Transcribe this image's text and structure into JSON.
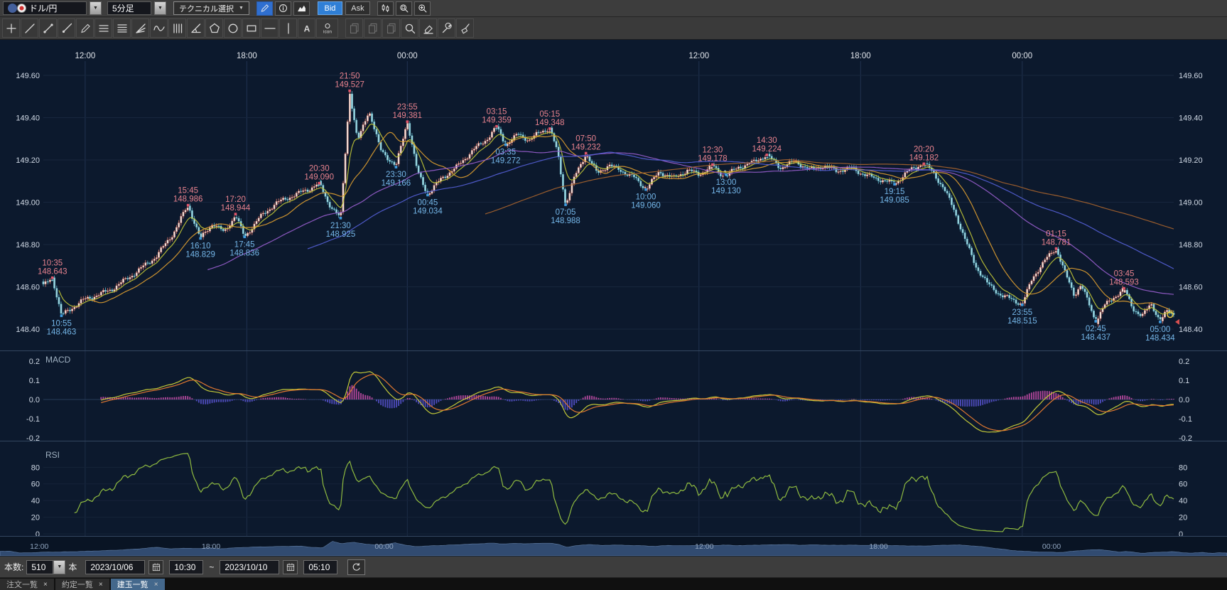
{
  "colors": {
    "bg_chart": "#0c192d",
    "candle_up": "#f0e1da",
    "candle_up_stroke": "#d4766a",
    "candle_down": "#9ed6e0",
    "candle_down_stroke": "#58a8bc",
    "high_label": "#e8828e",
    "low_label": "#74b6e8",
    "macd_pos": "#cf4fae",
    "macd_neg": "#5b55d6",
    "macd_line": "#c2c838",
    "macd_signal": "#e07830",
    "rsi_line": "#8fbb40",
    "grid_h": "#17263d",
    "grid_v": "#203250",
    "axis_text": "#cfd8e4"
  },
  "toolbar": {
    "pair": "ドル/円",
    "timeframe": "5分足",
    "technical_button": "テクニカル選択",
    "bid": "Bid",
    "ask": "Ask",
    "icon_buttons": [
      {
        "name": "draw-mode-button",
        "kind": "pencil",
        "accent": true
      },
      {
        "name": "info-button",
        "kind": "info"
      },
      {
        "name": "chart-style-button",
        "kind": "area"
      }
    ],
    "right_buttons": [
      {
        "name": "candle-type-button",
        "kind": "candles"
      },
      {
        "name": "zoom-area-button",
        "kind": "magrect"
      },
      {
        "name": "zoom-in-button",
        "kind": "magplus"
      }
    ]
  },
  "draw_tools": [
    {
      "name": "crosshair-tool",
      "kind": "plus"
    },
    {
      "name": "trendline-tool",
      "kind": "diag"
    },
    {
      "name": "line-segment-tool",
      "kind": "seg"
    },
    {
      "name": "ray-line-tool",
      "kind": "ray"
    },
    {
      "name": "freehand-pencil-tool",
      "kind": "pencil"
    },
    {
      "name": "fibonacci-retracement-tool",
      "kind": "h3"
    },
    {
      "name": "fibonacci-levels-tool",
      "kind": "h4"
    },
    {
      "name": "gann-fan-tool",
      "kind": "fan"
    },
    {
      "name": "wave-tool",
      "kind": "wave"
    },
    {
      "name": "time-zones-tool",
      "kind": "v4"
    },
    {
      "name": "trend-angle-tool",
      "kind": "angle"
    },
    {
      "name": "pentagon-tool",
      "kind": "pentagon"
    },
    {
      "name": "ellipse-tool",
      "kind": "circle"
    },
    {
      "name": "rectangle-tool",
      "kind": "rect"
    },
    {
      "name": "horizontal-line-tool",
      "kind": "hline"
    },
    {
      "name": "vertical-line-tool",
      "kind": "vline"
    },
    {
      "name": "text-tool",
      "kind": "textA",
      "label": "A"
    },
    {
      "name": "icon-stamp-tool",
      "kind": "iconbtn",
      "label": "icon",
      "wide": true
    },
    {
      "name": "copy-object-tool",
      "kind": "clip",
      "disabled": true,
      "gap": true
    },
    {
      "name": "duplicate-object-tool",
      "kind": "clip",
      "disabled": true
    },
    {
      "name": "paste-object-tool",
      "kind": "clip",
      "disabled": true
    },
    {
      "name": "zoom-select-tool",
      "kind": "mag"
    },
    {
      "name": "eraser-tool",
      "kind": "eraser"
    },
    {
      "name": "object-settings-tool",
      "kind": "wrench"
    },
    {
      "name": "clear-all-tool",
      "kind": "broom"
    }
  ],
  "chart_data": {
    "type": "candlestick+indicators",
    "symbol": "ドル/円",
    "interval": "5分足",
    "bar_count": 510,
    "price_axis": {
      "min": 148.4,
      "max": 149.6,
      "ticks": [
        "149.60",
        "149.40",
        "149.20",
        "149.00",
        "148.80",
        "148.60",
        "148.40"
      ]
    },
    "time_ticks": [
      {
        "label": "12:00",
        "f": 0.037
      },
      {
        "label": "18:00",
        "f": 0.18
      },
      {
        "label": "00:00",
        "f": 0.322
      },
      {
        "label": "12:00",
        "f": 0.58
      },
      {
        "label": "18:00",
        "f": 0.723
      },
      {
        "label": "00:00",
        "f": 0.866
      }
    ],
    "nav_ticks": [
      {
        "label": "12:00",
        "f": 0.032
      },
      {
        "label": "18:00",
        "f": 0.172
      },
      {
        "label": "00:00",
        "f": 0.313
      },
      {
        "label": "12:00",
        "f": 0.574
      },
      {
        "label": "18:00",
        "f": 0.716
      },
      {
        "label": "00:00",
        "f": 0.857
      }
    ],
    "anchors": [
      [
        0.0,
        148.6
      ],
      [
        0.008,
        148.643
      ],
      [
        0.016,
        148.463
      ],
      [
        0.035,
        148.54
      ],
      [
        0.06,
        148.59
      ],
      [
        0.08,
        148.66
      ],
      [
        0.1,
        148.74
      ],
      [
        0.115,
        148.85
      ],
      [
        0.128,
        148.986
      ],
      [
        0.139,
        148.829
      ],
      [
        0.15,
        148.905
      ],
      [
        0.16,
        148.86
      ],
      [
        0.17,
        148.944
      ],
      [
        0.178,
        148.836
      ],
      [
        0.19,
        148.92
      ],
      [
        0.205,
        148.99
      ],
      [
        0.222,
        149.03
      ],
      [
        0.235,
        149.06
      ],
      [
        0.244,
        149.09
      ],
      [
        0.252,
        149.0
      ],
      [
        0.263,
        148.925
      ],
      [
        0.271,
        149.527
      ],
      [
        0.278,
        149.29
      ],
      [
        0.288,
        149.44
      ],
      [
        0.298,
        149.25
      ],
      [
        0.312,
        149.166
      ],
      [
        0.322,
        149.381
      ],
      [
        0.331,
        149.14
      ],
      [
        0.34,
        149.034
      ],
      [
        0.352,
        149.11
      ],
      [
        0.366,
        149.17
      ],
      [
        0.38,
        149.25
      ],
      [
        0.392,
        149.3
      ],
      [
        0.401,
        149.359
      ],
      [
        0.409,
        149.272
      ],
      [
        0.42,
        149.32
      ],
      [
        0.43,
        149.29
      ],
      [
        0.44,
        149.33
      ],
      [
        0.448,
        149.348
      ],
      [
        0.455,
        149.23
      ],
      [
        0.462,
        148.988
      ],
      [
        0.47,
        149.12
      ],
      [
        0.48,
        149.232
      ],
      [
        0.49,
        149.14
      ],
      [
        0.5,
        149.18
      ],
      [
        0.512,
        149.15
      ],
      [
        0.522,
        149.12
      ],
      [
        0.533,
        149.06
      ],
      [
        0.545,
        149.14
      ],
      [
        0.558,
        149.11
      ],
      [
        0.57,
        149.15
      ],
      [
        0.58,
        149.13
      ],
      [
        0.592,
        149.178
      ],
      [
        0.598,
        149.14
      ],
      [
        0.604,
        149.13
      ],
      [
        0.615,
        149.17
      ],
      [
        0.628,
        149.19
      ],
      [
        0.64,
        149.224
      ],
      [
        0.652,
        149.16
      ],
      [
        0.665,
        149.19
      ],
      [
        0.678,
        149.15
      ],
      [
        0.69,
        149.17
      ],
      [
        0.702,
        149.15
      ],
      [
        0.715,
        149.165
      ],
      [
        0.728,
        149.13
      ],
      [
        0.74,
        149.11
      ],
      [
        0.753,
        149.085
      ],
      [
        0.764,
        149.14
      ],
      [
        0.779,
        149.182
      ],
      [
        0.788,
        149.13
      ],
      [
        0.797,
        149.06
      ],
      [
        0.806,
        148.96
      ],
      [
        0.815,
        148.83
      ],
      [
        0.825,
        148.7
      ],
      [
        0.835,
        148.62
      ],
      [
        0.848,
        148.56
      ],
      [
        0.858,
        148.54
      ],
      [
        0.866,
        148.515
      ],
      [
        0.875,
        148.64
      ],
      [
        0.886,
        148.72
      ],
      [
        0.896,
        148.781
      ],
      [
        0.904,
        148.66
      ],
      [
        0.912,
        148.56
      ],
      [
        0.918,
        148.61
      ],
      [
        0.925,
        148.52
      ],
      [
        0.931,
        148.437
      ],
      [
        0.938,
        148.51
      ],
      [
        0.946,
        148.55
      ],
      [
        0.956,
        148.593
      ],
      [
        0.964,
        148.5
      ],
      [
        0.972,
        148.46
      ],
      [
        0.98,
        148.52
      ],
      [
        0.988,
        148.434
      ],
      [
        0.994,
        148.48
      ],
      [
        1.0,
        148.47
      ]
    ],
    "high_markers": [
      {
        "time": "10:35",
        "price": 148.643,
        "f": 0.008
      },
      {
        "time": "15:45",
        "price": 148.986,
        "f": 0.128
      },
      {
        "time": "17:20",
        "price": 148.944,
        "f": 0.17
      },
      {
        "time": "20:30",
        "price": 149.09,
        "f": 0.244
      },
      {
        "time": "21:50",
        "price": 149.527,
        "f": 0.271
      },
      {
        "time": "23:55",
        "price": 149.381,
        "f": 0.322
      },
      {
        "time": "03:15",
        "price": 149.359,
        "f": 0.401
      },
      {
        "time": "05:15",
        "price": 149.348,
        "f": 0.448
      },
      {
        "time": "07:50",
        "price": 149.232,
        "f": 0.48
      },
      {
        "time": "12:30",
        "price": 149.178,
        "f": 0.592
      },
      {
        "time": "14:30",
        "price": 149.224,
        "f": 0.64
      },
      {
        "time": "20:20",
        "price": 149.182,
        "f": 0.779
      },
      {
        "time": "01:15",
        "price": 148.781,
        "f": 0.896
      },
      {
        "time": "03:45",
        "price": 148.593,
        "f": 0.956
      }
    ],
    "low_markers": [
      {
        "time": "10:55",
        "price": 148.463,
        "f": 0.016
      },
      {
        "time": "16:10",
        "price": 148.829,
        "f": 0.139
      },
      {
        "time": "17:45",
        "price": 148.836,
        "f": 0.178
      },
      {
        "time": "21:30",
        "price": 148.925,
        "f": 0.263
      },
      {
        "time": "23:30",
        "price": 149.166,
        "f": 0.312
      },
      {
        "time": "00:45",
        "price": 149.034,
        "f": 0.34
      },
      {
        "time": "03:35",
        "price": 149.272,
        "f": 0.409
      },
      {
        "time": "07:05",
        "price": 148.988,
        "f": 0.462
      },
      {
        "time": "10:00",
        "price": 149.06,
        "f": 0.533
      },
      {
        "time": "13:00",
        "price": 149.13,
        "f": 0.604
      },
      {
        "time": "19:15",
        "price": 149.085,
        "f": 0.753
      },
      {
        "time": "23:55",
        "price": 148.515,
        "f": 0.866
      },
      {
        "time": "02:45",
        "price": 148.437,
        "f": 0.931
      },
      {
        "time": "05:00",
        "price": 148.434,
        "f": 0.988
      }
    ],
    "mas": [
      {
        "type": "ema",
        "period": 8,
        "color": "#c2c838"
      },
      {
        "type": "sma",
        "period": 21,
        "color": "#e0a030"
      },
      {
        "type": "sma",
        "period": 75,
        "color": "#9a5fd0"
      },
      {
        "type": "sma",
        "period": 120,
        "color": "#5560d8"
      },
      {
        "type": "sma",
        "period": 200,
        "color": "#a8642e"
      }
    ],
    "macd": {
      "label": "MACD",
      "ticks": [
        "0.2",
        "0.1",
        "0.0",
        "-0.1",
        "-0.2"
      ],
      "fast": 12,
      "slow": 26,
      "signal": 9
    },
    "rsi": {
      "label": "RSI",
      "ticks": [
        "80",
        "60",
        "40",
        "20",
        "0"
      ],
      "period": 14
    }
  },
  "controls": {
    "bars_label": "本数:",
    "bars_value": "510",
    "bars_unit": "本",
    "date_from": "2023/10/06",
    "time_from": "10:30",
    "range_sep": "~",
    "date_to": "2023/10/10",
    "time_to": "05:10"
  },
  "tabs": [
    {
      "label": "注文一覧",
      "active": false
    },
    {
      "label": "約定一覧",
      "active": false
    },
    {
      "label": "建玉一覧",
      "active": true
    }
  ]
}
